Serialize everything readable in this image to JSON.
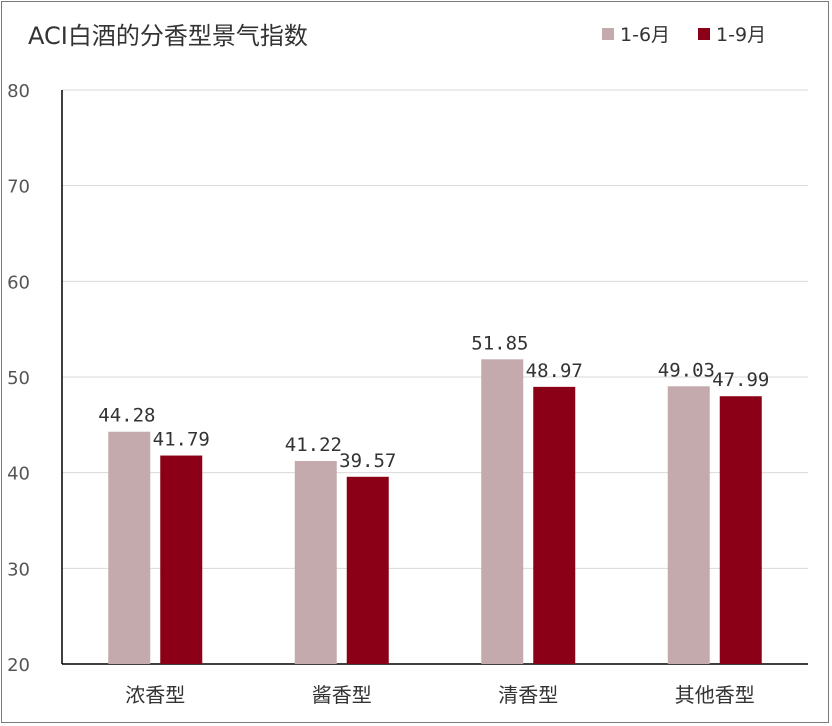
{
  "chart_data": {
    "type": "bar",
    "title": "ACI白酒的分香型景气指数",
    "categories": [
      "浓香型",
      "酱香型",
      "清香型",
      "其他香型"
    ],
    "series": [
      {
        "name": "1-6月",
        "values": [
          44.28,
          41.22,
          51.85,
          49.03
        ],
        "color": "#c4aaac",
        "labels": [
          "44.28",
          "41.22",
          "51.85",
          "49.03"
        ]
      },
      {
        "name": "1-9月",
        "values": [
          41.79,
          39.57,
          48.97,
          47.99
        ],
        "color": "#8b0016",
        "labels": [
          "41.79",
          "39.57",
          "48.97",
          "47.99"
        ]
      }
    ],
    "ylim": [
      20,
      80
    ],
    "yticks": [
      20,
      30,
      40,
      50,
      60,
      70,
      80
    ],
    "ytick_labels": [
      "20",
      "30",
      "40",
      "50",
      "60",
      "70",
      "80"
    ],
    "grid": true,
    "legend": "top-right",
    "xlabel": "",
    "ylabel": ""
  }
}
